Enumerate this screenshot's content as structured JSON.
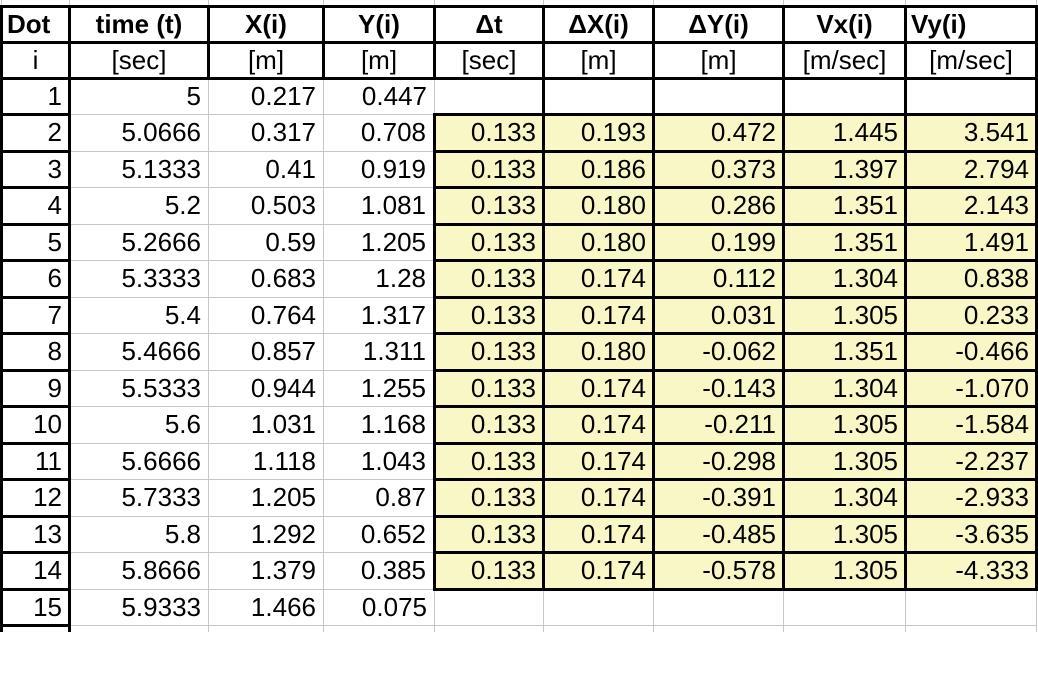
{
  "table": {
    "header": [
      "Dot",
      "time (t)",
      "X(i)",
      "Y(i)",
      "Δt",
      "ΔX(i)",
      "ΔY(i)",
      "Vx(i)",
      "Vy(i)"
    ],
    "units": [
      "i",
      "[sec]",
      "[m]",
      "[m]",
      "[sec]",
      "[m]",
      "[m]",
      "[m/sec]",
      "[m/sec]"
    ],
    "rows": [
      [
        "1",
        "5",
        "0.217",
        "0.447",
        "",
        "",
        "",
        "",
        ""
      ],
      [
        "2",
        "5.0666",
        "0.317",
        "0.708",
        "0.133",
        "0.193",
        "0.472",
        "1.445",
        "3.541"
      ],
      [
        "3",
        "5.1333",
        "0.41",
        "0.919",
        "0.133",
        "0.186",
        "0.373",
        "1.397",
        "2.794"
      ],
      [
        "4",
        "5.2",
        "0.503",
        "1.081",
        "0.133",
        "0.180",
        "0.286",
        "1.351",
        "2.143"
      ],
      [
        "5",
        "5.2666",
        "0.59",
        "1.205",
        "0.133",
        "0.180",
        "0.199",
        "1.351",
        "1.491"
      ],
      [
        "6",
        "5.3333",
        "0.683",
        "1.28",
        "0.133",
        "0.174",
        "0.112",
        "1.304",
        "0.838"
      ],
      [
        "7",
        "5.4",
        "0.764",
        "1.317",
        "0.133",
        "0.174",
        "0.031",
        "1.305",
        "0.233"
      ],
      [
        "8",
        "5.4666",
        "0.857",
        "1.311",
        "0.133",
        "0.180",
        "-0.062",
        "1.351",
        "-0.466"
      ],
      [
        "9",
        "5.5333",
        "0.944",
        "1.255",
        "0.133",
        "0.174",
        "-0.143",
        "1.304",
        "-1.070"
      ],
      [
        "10",
        "5.6",
        "1.031",
        "1.168",
        "0.133",
        "0.174",
        "-0.211",
        "1.305",
        "-1.584"
      ],
      [
        "11",
        "5.6666",
        "1.118",
        "1.043",
        "0.133",
        "0.174",
        "-0.298",
        "1.305",
        "-2.237"
      ],
      [
        "12",
        "5.7333",
        "1.205",
        "0.87",
        "0.133",
        "0.174",
        "-0.391",
        "1.304",
        "-2.933"
      ],
      [
        "13",
        "5.8",
        "1.292",
        "0.652",
        "0.133",
        "0.174",
        "-0.485",
        "1.305",
        "-3.635"
      ],
      [
        "14",
        "5.8666",
        "1.379",
        "0.385",
        "0.133",
        "0.174",
        "-0.578",
        "1.305",
        "-4.333"
      ],
      [
        "15",
        "5.9333",
        "1.466",
        "0.075",
        "",
        "",
        "",
        "",
        ""
      ]
    ]
  },
  "colors": {
    "highlight": "#faf7c6",
    "gridline": "#c6c6c6",
    "border": "#000000"
  }
}
